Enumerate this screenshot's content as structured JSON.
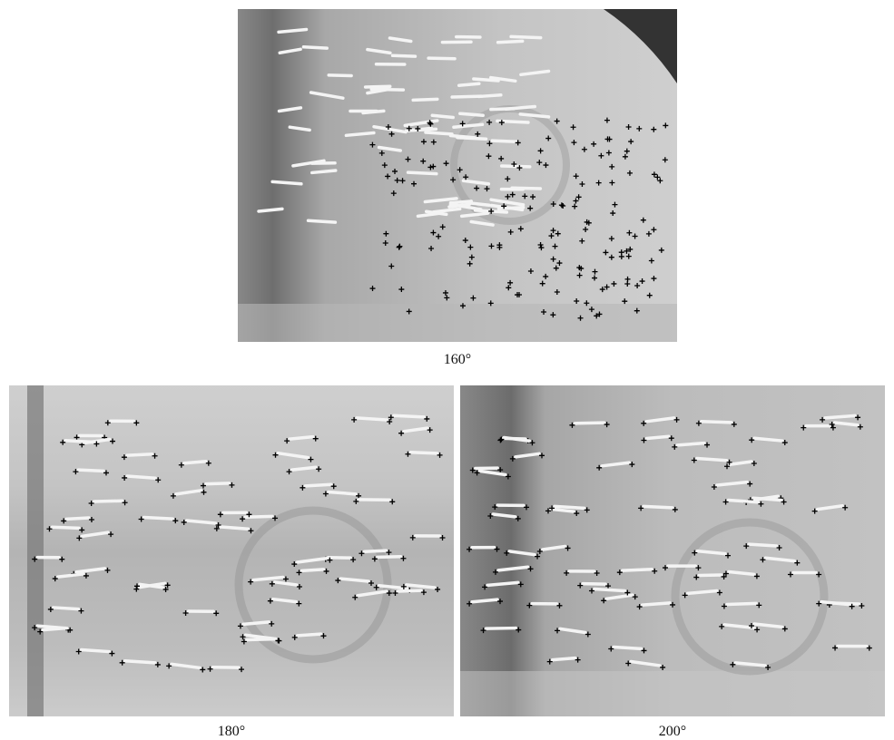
{
  "panels": [
    {
      "caption": "160°"
    },
    {
      "caption": "180°"
    },
    {
      "caption": "200°"
    }
  ]
}
